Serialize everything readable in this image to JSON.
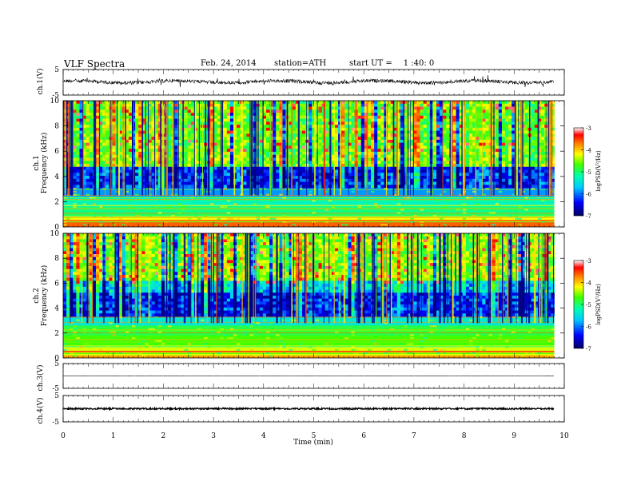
{
  "header": {
    "title": "VLF Spectra",
    "date": "Feb. 24, 2014",
    "station": "station=ATH",
    "start_label": "start UT =",
    "start_time": "1 :40: 0"
  },
  "chart_data": [
    {
      "type": "line",
      "panel": "ch1",
      "ylabel": "ch.1(V)",
      "ylim": [
        -5,
        5
      ],
      "yticks": [
        "5",
        "-5"
      ],
      "xlim": [
        0,
        10
      ],
      "description_values": {
        "mean_level": 0.2,
        "noise_amplitude": 0.7
      },
      "color": "#000000"
    },
    {
      "type": "heatmap",
      "panel": "ch1-spectrogram",
      "ylabel": [
        "ch.1",
        "Frequency (kHz)"
      ],
      "ylim": [
        0,
        10
      ],
      "yticks": [
        "0",
        "2",
        "4",
        "6",
        "8",
        "10"
      ],
      "xlim": [
        0,
        9.8
      ],
      "colorbar": {
        "label": "logPSD(V²/Hz)",
        "range": [
          -7,
          -3
        ],
        "ticks": [
          "-3",
          "-4",
          "-5",
          "-6",
          "-7"
        ]
      },
      "colormap": [
        "#000080",
        "#0000ff",
        "#00c8ff",
        "#00ffb0",
        "#40ff00",
        "#ffff00",
        "#ff8000",
        "#ff0000",
        "#ffffff"
      ]
    },
    {
      "type": "heatmap",
      "panel": "ch2-spectrogram",
      "ylabel": [
        "ch.2",
        "Frequency (kHz)"
      ],
      "ylim": [
        0,
        10
      ],
      "yticks": [
        "0",
        "2",
        "4",
        "6",
        "8",
        "10"
      ],
      "xlim": [
        0,
        9.8
      ],
      "colorbar": {
        "label": "logPSD(V²/Hz)",
        "range": [
          -7,
          -3
        ],
        "ticks": [
          "-3",
          "-4",
          "-5",
          "-6",
          "-7"
        ]
      },
      "colormap": [
        "#000080",
        "#0000ff",
        "#00c8ff",
        "#00ffb0",
        "#40ff00",
        "#ffff00",
        "#ff8000",
        "#ff0000",
        "#ffffff"
      ]
    },
    {
      "type": "line",
      "panel": "ch3",
      "ylabel": "ch.3(V)",
      "ylim": [
        -5,
        5
      ],
      "yticks": [
        "5",
        "-5"
      ],
      "xlim": [
        0,
        10
      ],
      "description_values": {
        "mean_level": 0.0,
        "noise_amplitude": 0.05
      },
      "color": "#000000"
    },
    {
      "type": "line",
      "panel": "ch4",
      "ylabel": "ch.4(V)",
      "ylim": [
        -5,
        5
      ],
      "yticks": [
        "5",
        "-5"
      ],
      "xlim": [
        0,
        10
      ],
      "description_values": {
        "mean_level": 0.0,
        "noise_amplitude": 0.3
      },
      "color": "#000000"
    }
  ],
  "x_axis": {
    "label": "Time (min)",
    "ticks": [
      "0",
      "1",
      "2",
      "3",
      "4",
      "5",
      "6",
      "7",
      "8",
      "9",
      "10"
    ],
    "range": [
      0,
      10
    ]
  }
}
